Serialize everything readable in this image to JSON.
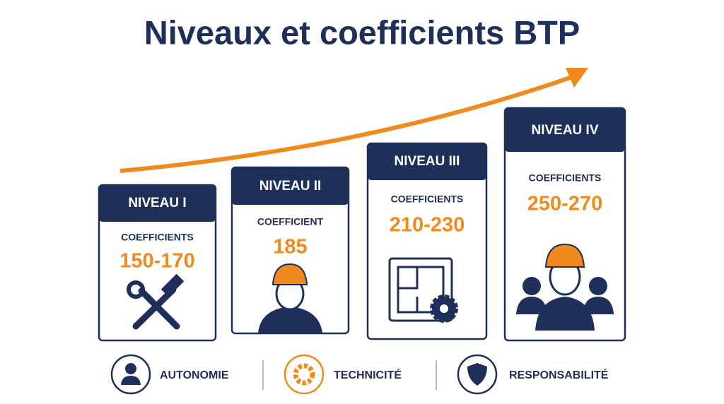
{
  "header": {
    "title": "Niveaux et coefficients BTP"
  },
  "levels": [
    {
      "heading": "NIVEAU I",
      "label": "COEFFICIENTS",
      "value": "150-170"
    },
    {
      "heading": "NIVEAU II",
      "label": "COEFFICIENT",
      "value": "185"
    },
    {
      "heading": "NIVEAU III",
      "label": "COEFFICIENTS",
      "value": "210-230"
    },
    {
      "heading": "NIVEAU IV",
      "label": "COEFFICIENTS",
      "value": "250-270"
    }
  ],
  "footer": {
    "items": [
      "AUTONOMIE",
      "TECHNICITÉ",
      "RESPONSABILITÉ"
    ]
  }
}
